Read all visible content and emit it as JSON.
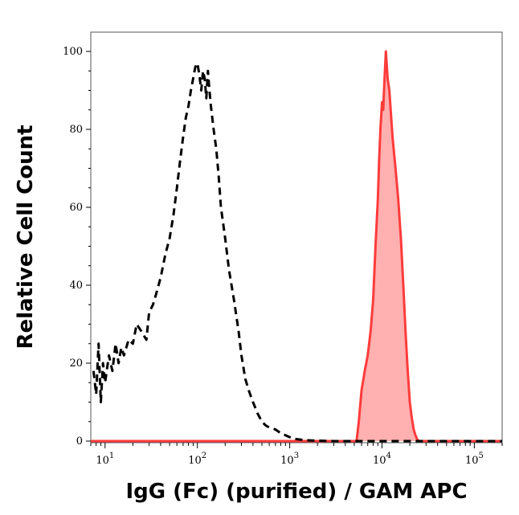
{
  "chart_data": {
    "type": "area",
    "title": "",
    "xlabel": "IgG (Fc) (purified) / GAM APC",
    "ylabel": "Relative Cell Count",
    "x_scale": "log",
    "xlim": [
      7,
      200000
    ],
    "ylim": [
      0,
      105
    ],
    "x_ticks": [
      {
        "value": 10,
        "base": "10",
        "exp": "1"
      },
      {
        "value": 100,
        "base": "10",
        "exp": "2"
      },
      {
        "value": 1000,
        "base": "10",
        "exp": "3"
      },
      {
        "value": 10000,
        "base": "10",
        "exp": "4"
      },
      {
        "value": 100000,
        "base": "10",
        "exp": "5"
      }
    ],
    "y_ticks": [
      0,
      20,
      40,
      60,
      80,
      100
    ],
    "grid": false,
    "legend": "none",
    "series": [
      {
        "style": "dashed",
        "color": "#000000",
        "fill": "none",
        "x": [
          7.5,
          8,
          8.5,
          9,
          9.5,
          10,
          11,
          12,
          13,
          14,
          15,
          16,
          18,
          20,
          22,
          25,
          28,
          30,
          33,
          36,
          40,
          45,
          50,
          55,
          60,
          65,
          70,
          75,
          80,
          85,
          90,
          95,
          100,
          105,
          110,
          115,
          120,
          125,
          130,
          135,
          140,
          150,
          160,
          170,
          180,
          200,
          220,
          250,
          280,
          300,
          330,
          360,
          400,
          450,
          500,
          550,
          600,
          700,
          800,
          900,
          1000,
          1100,
          1300,
          1500,
          2000,
          3000,
          5000,
          10000,
          50000,
          200000
        ],
        "values": [
          18,
          12,
          25,
          10,
          20,
          15,
          22,
          18,
          25,
          20,
          24,
          22,
          26,
          25,
          30,
          28,
          26,
          33,
          35,
          38,
          42,
          48,
          52,
          58,
          65,
          72,
          78,
          83,
          86,
          90,
          93,
          96,
          97,
          94,
          90,
          95,
          93,
          88,
          95,
          90,
          86,
          80,
          75,
          68,
          60,
          52,
          44,
          36,
          28,
          22,
          16,
          13,
          10,
          7,
          5,
          4,
          3.5,
          3,
          2,
          1.5,
          1,
          0.6,
          0.4,
          0.2,
          0.1,
          0,
          0,
          0,
          0,
          0
        ]
      },
      {
        "style": "solid",
        "color": "#ff3b3b",
        "fill": "#ffb0b0",
        "x": [
          7,
          5000,
          5300,
          5600,
          6000,
          6500,
          7000,
          7500,
          8000,
          8500,
          9000,
          9300,
          9600,
          10000,
          10300,
          10600,
          11000,
          11500,
          12000,
          12500,
          13000,
          14000,
          15000,
          16000,
          17000,
          18000,
          19000,
          20000,
          21000,
          22000,
          23000,
          24000,
          25000,
          27000,
          30000,
          200000
        ],
        "values": [
          0,
          0,
          0,
          5,
          13,
          18,
          22,
          28,
          36,
          50,
          62,
          72,
          80,
          87,
          85,
          92,
          100,
          93,
          90,
          84,
          78,
          70,
          62,
          52,
          40,
          28,
          18,
          10,
          6,
          3,
          1.5,
          0.5,
          0,
          0,
          0,
          0
        ]
      }
    ]
  }
}
